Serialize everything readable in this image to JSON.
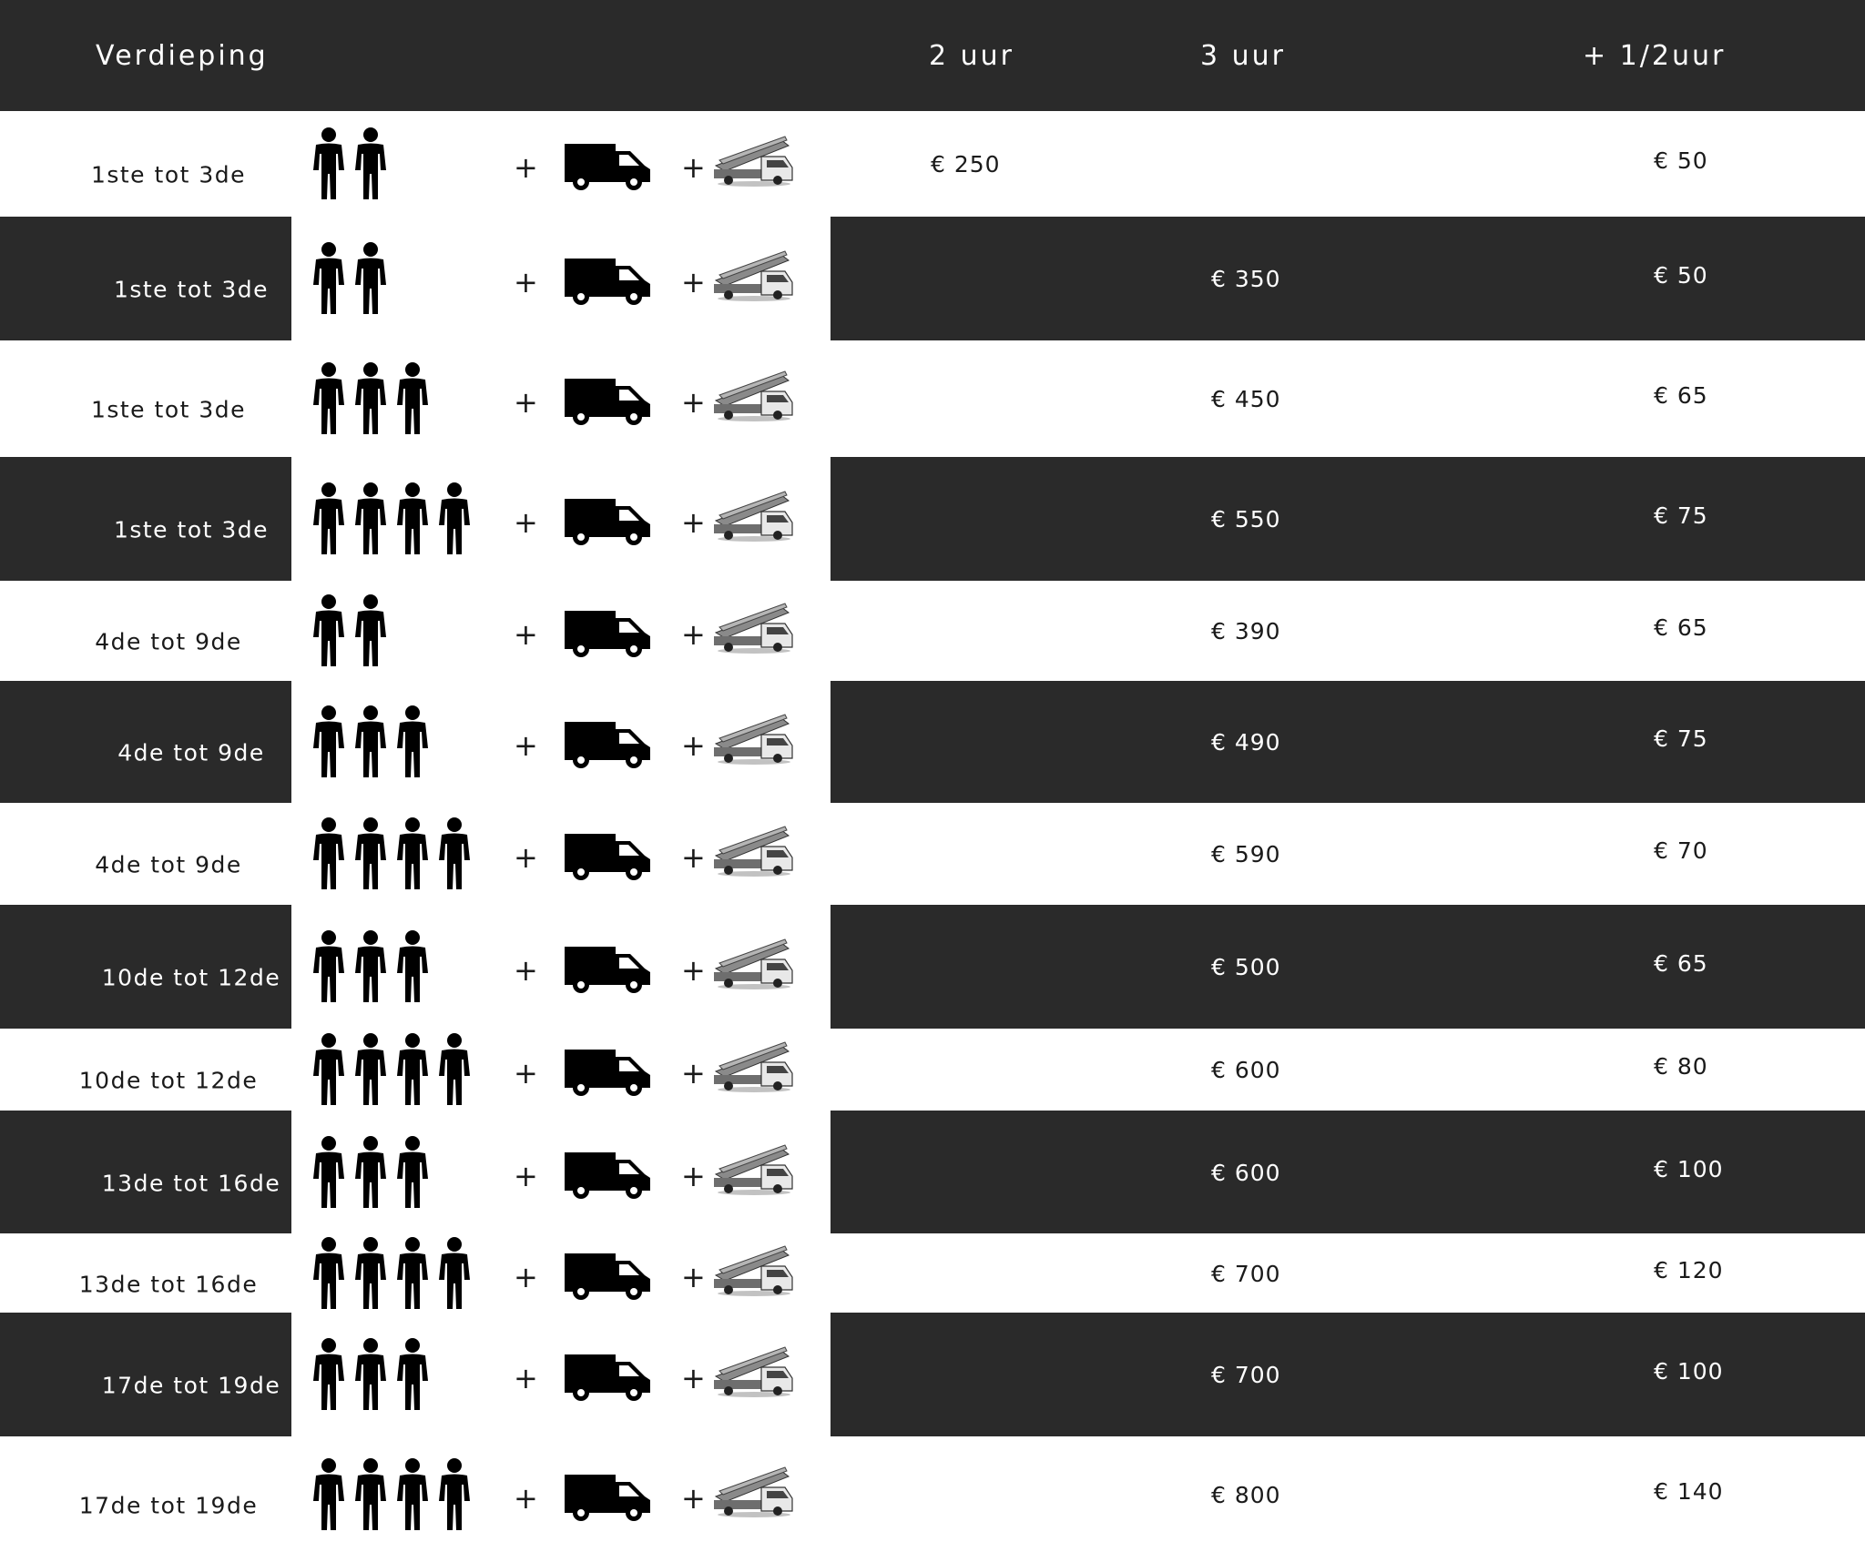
{
  "header": {
    "floor": "Verdieping",
    "col_2uur": "2 uur",
    "col_3uur": "3 uur",
    "col_half": "+ 1/2uur"
  },
  "symbols": {
    "plus": "+"
  },
  "icons": {
    "person": "person-icon",
    "van": "van-icon",
    "lift": "moving-lift-truck-icon"
  },
  "colors": {
    "dark_band": "#2a2a2a",
    "light_band": "#ffffff",
    "text_dark": "#1a1a1a",
    "text_light": "#ffffff"
  },
  "rows": [
    {
      "floor": "1ste tot 3de",
      "movers": 2,
      "price_2uur": "€ 250",
      "price_3uur": "",
      "price_half": "€ 50",
      "dark": false
    },
    {
      "floor": "1ste tot 3de",
      "movers": 2,
      "price_2uur": "",
      "price_3uur": "€ 350",
      "price_half": "€ 50",
      "dark": true
    },
    {
      "floor": "1ste tot 3de",
      "movers": 3,
      "price_2uur": "",
      "price_3uur": "€ 450",
      "price_half": "€ 65",
      "dark": false
    },
    {
      "floor": "1ste tot 3de",
      "movers": 4,
      "price_2uur": "",
      "price_3uur": "€ 550",
      "price_half": "€ 75",
      "dark": true
    },
    {
      "floor": "4de tot 9de",
      "movers": 2,
      "price_2uur": "",
      "price_3uur": "€ 390",
      "price_half": "€ 65",
      "dark": false
    },
    {
      "floor": "4de tot 9de",
      "movers": 3,
      "price_2uur": "",
      "price_3uur": "€ 490",
      "price_half": "€ 75",
      "dark": true
    },
    {
      "floor": "4de tot 9de",
      "movers": 4,
      "price_2uur": "",
      "price_3uur": "€ 590",
      "price_half": "€ 70",
      "dark": false
    },
    {
      "floor": "10de tot 12de",
      "movers": 3,
      "price_2uur": "",
      "price_3uur": "€ 500",
      "price_half": "€ 65",
      "dark": true
    },
    {
      "floor": "10de tot 12de",
      "movers": 4,
      "price_2uur": "",
      "price_3uur": "€ 600",
      "price_half": "€ 80",
      "dark": false
    },
    {
      "floor": "13de tot 16de",
      "movers": 3,
      "price_2uur": "",
      "price_3uur": "€ 600",
      "price_half": "€ 100",
      "dark": true
    },
    {
      "floor": "13de tot 16de",
      "movers": 4,
      "price_2uur": "",
      "price_3uur": "€ 700",
      "price_half": "€ 120",
      "dark": false
    },
    {
      "floor": "17de tot 19de",
      "movers": 3,
      "price_2uur": "",
      "price_3uur": "€ 700",
      "price_half": "€ 100",
      "dark": true
    },
    {
      "floor": "17de tot 19de",
      "movers": 4,
      "price_2uur": "",
      "price_3uur": "€ 800",
      "price_half": "€ 140",
      "dark": false
    }
  ]
}
